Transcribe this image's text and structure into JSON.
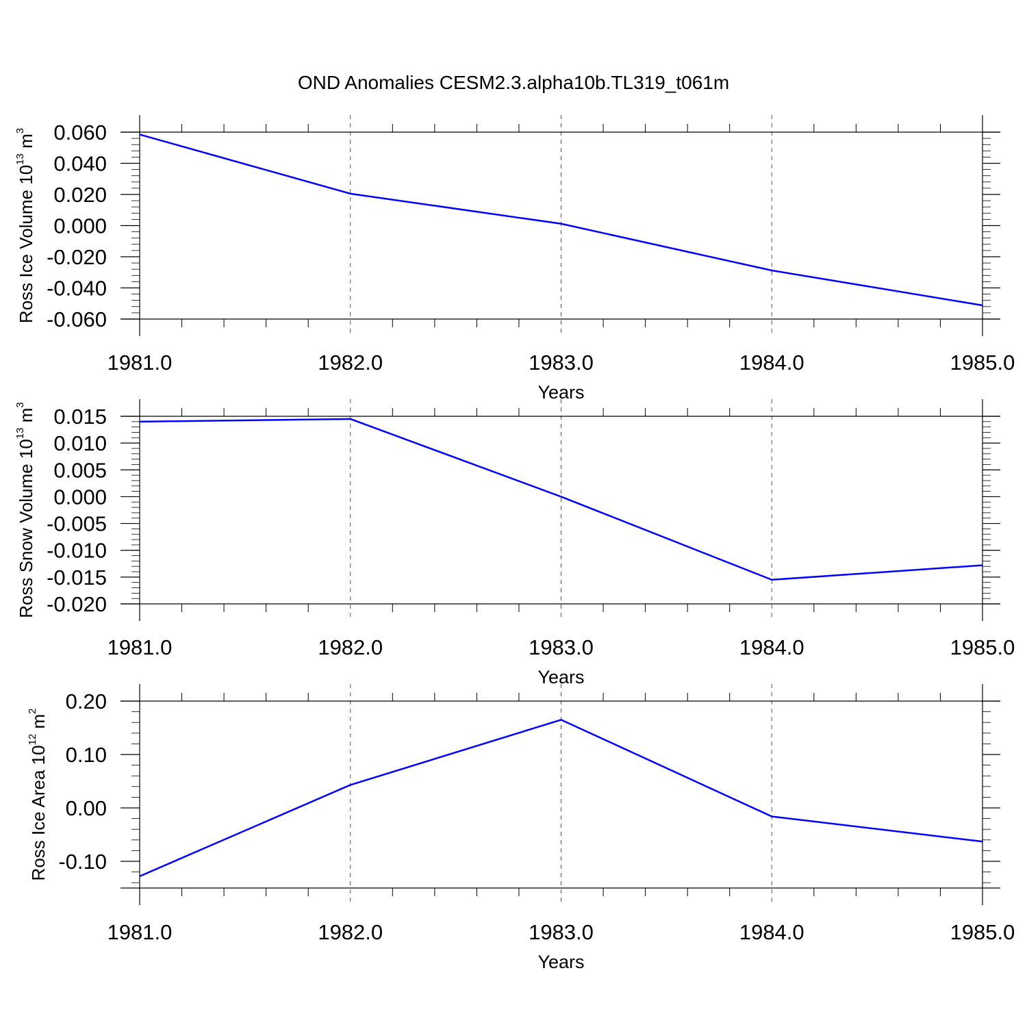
{
  "chart_data": {
    "title": "OND Anomalies CESM2.3.alpha10b.TL319_t061m",
    "panels": [
      {
        "type": "line",
        "ylabel": {
          "text": "Ross Ice Volume 10",
          "exp": "13",
          "unit": " m",
          "unit_exp": "3"
        },
        "xlabel": "Years",
        "x": [
          1981.0,
          1982.0,
          1983.0,
          1984.0,
          1985.0
        ],
        "xlim": [
          1981.0,
          1985.0
        ],
        "xticks": [
          "1981.0",
          "1982.0",
          "1983.0",
          "1984.0",
          "1985.0"
        ],
        "y": [
          0.0585,
          0.0205,
          0.0012,
          -0.0288,
          -0.0512
        ],
        "ylim": [
          -0.06,
          0.06
        ],
        "yticks": [
          0.06,
          0.04,
          0.02,
          0.0,
          -0.02,
          -0.04,
          -0.06
        ],
        "ytick_labels": [
          "0.060",
          "0.040",
          "0.020",
          "0.000",
          "-0.020",
          "-0.040",
          "-0.060"
        ],
        "line_color": "#0000ff",
        "grid": "dashed vertical at major x ticks"
      },
      {
        "type": "line",
        "ylabel": {
          "text": "Ross Snow Volume 10",
          "exp": "13",
          "unit": " m",
          "unit_exp": "3"
        },
        "xlabel": "Years",
        "x": [
          1981.0,
          1982.0,
          1983.0,
          1984.0,
          1985.0
        ],
        "xlim": [
          1981.0,
          1985.0
        ],
        "xticks": [
          "1981.0",
          "1982.0",
          "1983.0",
          "1984.0",
          "1985.0"
        ],
        "y": [
          0.014,
          0.0145,
          0.0,
          -0.0155,
          -0.0128
        ],
        "ylim": [
          -0.02,
          0.015
        ],
        "yticks": [
          0.015,
          0.01,
          0.005,
          0.0,
          -0.005,
          -0.01,
          -0.015,
          -0.02
        ],
        "ytick_labels": [
          "0.015",
          "0.010",
          "0.005",
          "0.000",
          "-0.005",
          "-0.010",
          "-0.015",
          "-0.020"
        ],
        "line_color": "#0000ff",
        "grid": "dashed vertical at major x ticks"
      },
      {
        "type": "line",
        "ylabel": {
          "text": "Ross Ice Area 10",
          "exp": "12",
          "unit": " m",
          "unit_exp": "2"
        },
        "xlabel": "Years",
        "x": [
          1981.0,
          1982.0,
          1983.0,
          1984.0,
          1985.0
        ],
        "xlim": [
          1981.0,
          1985.0
        ],
        "xticks": [
          "1981.0",
          "1982.0",
          "1983.0",
          "1984.0",
          "1985.0"
        ],
        "y": [
          -0.128,
          0.043,
          0.165,
          -0.016,
          -0.063
        ],
        "ylim": [
          -0.15,
          0.2
        ],
        "yticks": [
          0.2,
          0.1,
          0.0,
          -0.1
        ],
        "ytick_labels": [
          "0.20",
          "0.10",
          "0.00",
          "-0.10"
        ],
        "line_color": "#0000ff",
        "grid": "dashed vertical at major x ticks"
      }
    ]
  }
}
